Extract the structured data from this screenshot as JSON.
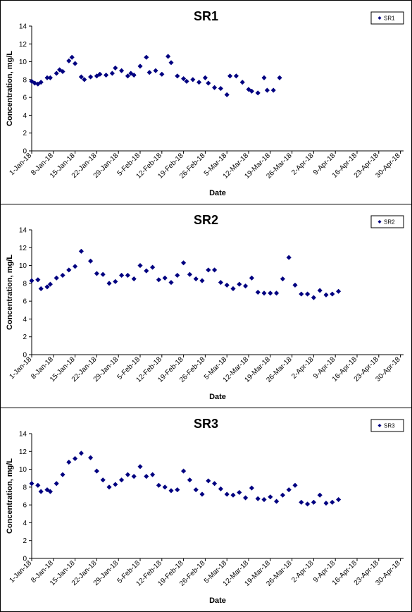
{
  "chart_data": [
    {
      "type": "scatter",
      "title": "SR1",
      "xlabel": "Date",
      "ylabel": "Concentration, mg/L",
      "ylim": [
        0,
        14
      ],
      "yticks": [
        "0",
        "2",
        "4",
        "6",
        "8",
        "10",
        "12",
        "14"
      ],
      "xlim": [
        "2018-01-01",
        "2018-05-01"
      ],
      "xticks": [
        "1-Jan-18",
        "8-Jan-18",
        "15-Jan-18",
        "22-Jan-18",
        "29-Jan-18",
        "5-Feb-18",
        "12-Feb-18",
        "19-Feb-18",
        "26-Feb-18",
        "5-Mar-18",
        "12-Mar-18",
        "19-Mar-18",
        "26-Mar-18",
        "2-Apr-18",
        "9-Apr-18",
        "16-Apr-18",
        "23-Apr-18",
        "30-Apr-18"
      ],
      "grid": false,
      "legend": "top-right",
      "marker_color": "#000080",
      "series": [
        {
          "name": "SR1",
          "x": [
            "2018-01-01",
            "2018-01-02",
            "2018-01-03",
            "2018-01-04",
            "2018-01-06",
            "2018-01-07",
            "2018-01-09",
            "2018-01-10",
            "2018-01-11",
            "2018-01-13",
            "2018-01-14",
            "2018-01-15",
            "2018-01-17",
            "2018-01-18",
            "2018-01-20",
            "2018-01-22",
            "2018-01-23",
            "2018-01-25",
            "2018-01-27",
            "2018-01-28",
            "2018-01-30",
            "2018-02-01",
            "2018-02-02",
            "2018-02-03",
            "2018-02-05",
            "2018-02-07",
            "2018-02-08",
            "2018-02-10",
            "2018-02-12",
            "2018-02-14",
            "2018-02-15",
            "2018-02-17",
            "2018-02-19",
            "2018-02-20",
            "2018-02-22",
            "2018-02-24",
            "2018-02-26",
            "2018-02-27",
            "2018-03-01",
            "2018-03-03",
            "2018-03-05",
            "2018-03-06",
            "2018-03-08",
            "2018-03-10",
            "2018-03-12",
            "2018-03-13",
            "2018-03-15",
            "2018-03-17",
            "2018-03-18",
            "2018-03-20",
            "2018-03-22",
            "2018-03-24",
            "2018-03-25",
            "2018-03-27",
            "2018-03-29",
            "2018-03-31",
            "2018-04-01",
            "2018-04-03",
            "2018-04-05",
            "2018-04-06",
            "2018-04-08",
            "2018-04-10",
            "2018-04-12",
            "2018-04-13",
            "2018-04-15",
            "2018-04-17",
            "2018-04-19",
            "2018-04-21",
            "2018-04-22",
            "2018-04-24",
            "2018-04-26",
            "2018-04-28",
            "2018-04-30"
          ],
          "y": [
            7.8,
            7.6,
            7.5,
            7.7,
            8.2,
            8.2,
            8.7,
            9.1,
            8.9,
            10.1,
            10.5,
            9.8,
            8.3,
            8.0,
            8.3,
            8.4,
            8.6,
            8.5,
            8.7,
            9.3,
            9.0,
            8.4,
            8.7,
            8.5,
            9.5,
            10.5,
            8.8,
            9.0,
            8.6,
            10.6,
            9.9,
            8.4,
            8.1,
            7.8,
            8.0,
            7.7,
            8.2,
            7.6,
            7.1,
            7.0,
            6.3,
            8.4,
            8.4,
            7.7,
            6.9,
            6.7,
            6.5,
            8.2,
            6.8,
            6.8,
            8.2,
            null,
            null,
            null,
            null,
            null,
            null,
            null,
            null,
            null,
            null,
            null,
            null,
            null,
            null,
            null,
            null,
            null,
            null,
            null,
            null,
            null,
            null
          ]
        }
      ]
    },
    {
      "type": "scatter",
      "title": "SR2",
      "xlabel": "Date",
      "ylabel": "Concentration, mg/L",
      "ylim": [
        0,
        14
      ],
      "yticks": [
        "0",
        "2",
        "4",
        "6",
        "8",
        "10",
        "12",
        "14"
      ],
      "xlim": [
        "2018-01-01",
        "2018-05-01"
      ],
      "xticks": [
        "1-Jan-18",
        "8-Jan-18",
        "15-Jan-18",
        "22-Jan-18",
        "29-Jan-18",
        "5-Feb-18",
        "12-Feb-18",
        "19-Feb-18",
        "26-Feb-18",
        "5-Mar-18",
        "12-Mar-18",
        "19-Mar-18",
        "26-Mar-18",
        "2-Apr-18",
        "9-Apr-18",
        "16-Apr-18",
        "23-Apr-18",
        "30-Apr-18"
      ],
      "grid": false,
      "legend": "top-right",
      "marker_color": "#000080",
      "series": [
        {
          "name": "SR2",
          "x": [],
          "y": []
        }
      ]
    },
    {
      "type": "scatter",
      "title": "SR3",
      "xlabel": "Date",
      "ylabel": "Concentration, mg/L",
      "ylim": [
        0,
        14
      ],
      "yticks": [
        "0",
        "2",
        "4",
        "6",
        "8",
        "10",
        "12",
        "14"
      ],
      "xlim": [
        "2018-01-01",
        "2018-05-01"
      ],
      "xticks": [
        "1-Jan-18",
        "8-Jan-18",
        "15-Jan-18",
        "22-Jan-18",
        "29-Jan-18",
        "5-Feb-18",
        "12-Feb-18",
        "19-Feb-18",
        "26-Feb-18",
        "5-Mar-18",
        "12-Mar-18",
        "19-Mar-18",
        "26-Mar-18",
        "2-Apr-18",
        "9-Apr-18",
        "16-Apr-18",
        "23-Apr-18",
        "30-Apr-18"
      ],
      "grid": false,
      "legend": "top-right",
      "marker_color": "#000080",
      "series": [
        {
          "name": "SR3",
          "x": [],
          "y": []
        }
      ]
    }
  ]
}
